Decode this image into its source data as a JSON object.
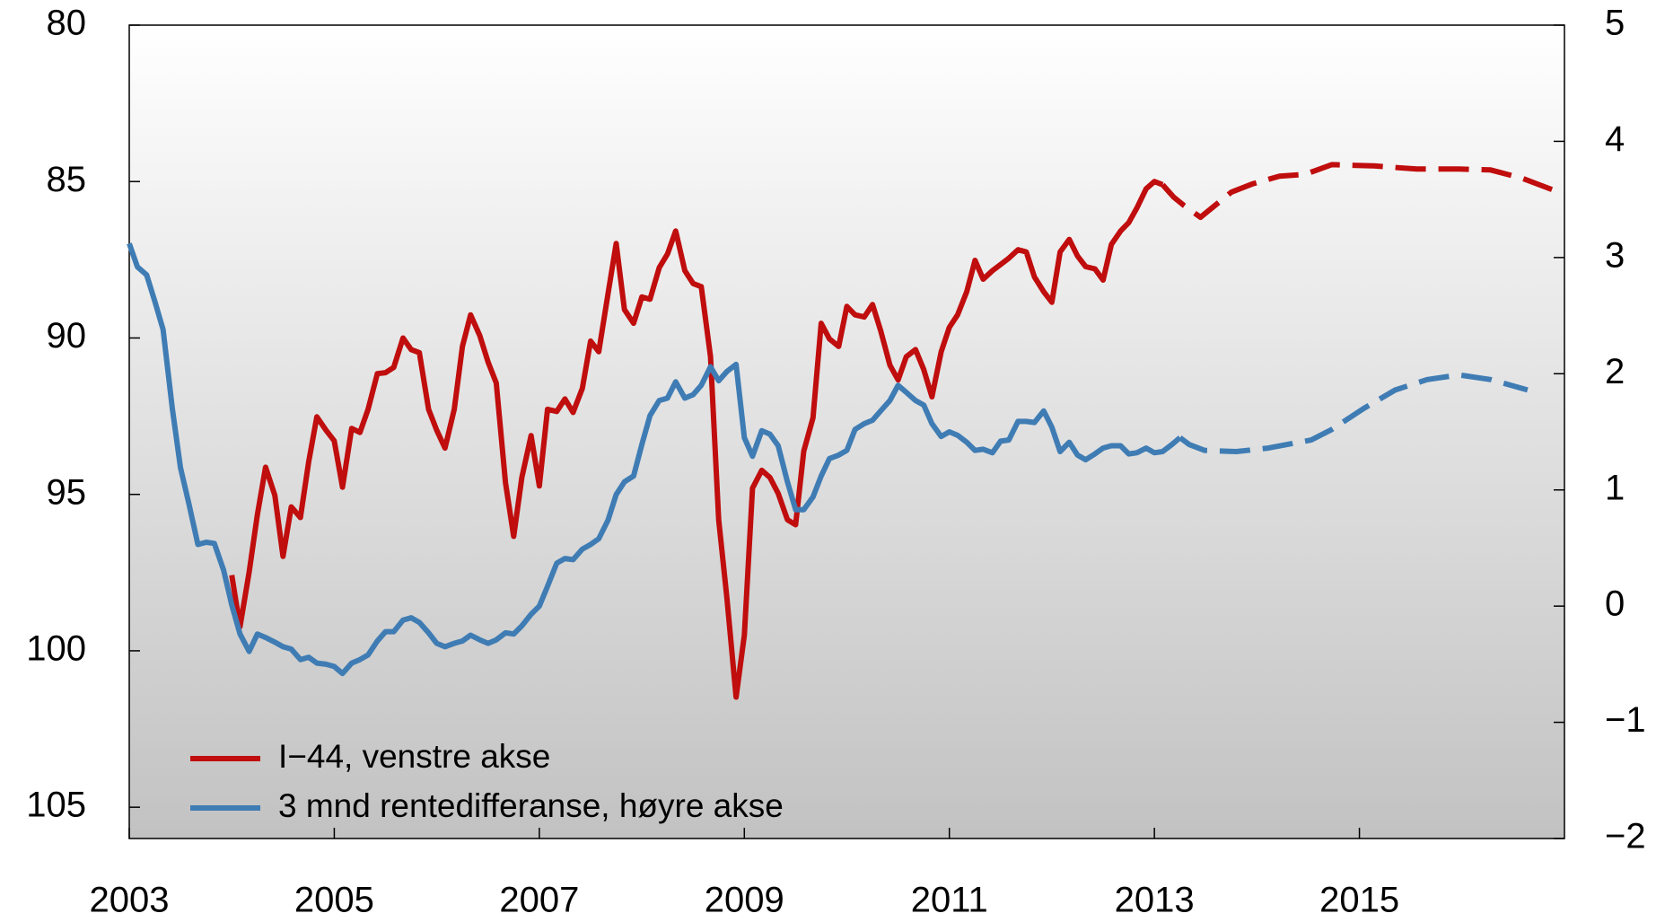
{
  "chart_data": {
    "type": "line",
    "xlim": [
      2003,
      2017
    ],
    "xticks": [
      2003,
      2005,
      2007,
      2009,
      2011,
      2013,
      2015
    ],
    "ylim": [
      80,
      106
    ],
    "y_inverted": true,
    "yticks": [
      80,
      85,
      90,
      95,
      100,
      105
    ],
    "y2lim": [
      -2,
      5
    ],
    "y2ticks": [
      5,
      4,
      3,
      2,
      1,
      0,
      {
        "value": -1,
        "label": "−1"
      },
      {
        "value": -2,
        "label": "−2"
      }
    ],
    "legend": "lower left",
    "series": [
      {
        "name": "I−44, venstre akse",
        "color": "#c00d0d",
        "axis": "y",
        "x": [
          2004,
          2004.08,
          2004.17,
          2004.25,
          2004.33,
          2004.42,
          2004.5,
          2004.58,
          2004.67,
          2004.75,
          2004.83,
          2004.92,
          2005,
          2005.08,
          2005.17,
          2005.25,
          2005.33,
          2005.42,
          2005.5,
          2005.58,
          2005.67,
          2005.75,
          2005.83,
          2005.92,
          2006,
          2006.08,
          2006.17,
          2006.25,
          2006.33,
          2006.42,
          2006.5,
          2006.58,
          2006.67,
          2006.75,
          2006.83,
          2006.92,
          2007,
          2007.08,
          2007.17,
          2007.25,
          2007.33,
          2007.42,
          2007.5,
          2007.58,
          2007.67,
          2007.75,
          2007.83,
          2007.92,
          2008,
          2008.08,
          2008.17,
          2008.25,
          2008.33,
          2008.42,
          2008.5,
          2008.58,
          2008.67,
          2008.75,
          2008.83,
          2008.92,
          2009,
          2009.08,
          2009.17,
          2009.25,
          2009.33,
          2009.42,
          2009.5,
          2009.58,
          2009.67,
          2009.75,
          2009.83,
          2009.92,
          2010,
          2010.08,
          2010.17,
          2010.25,
          2010.33,
          2010.42,
          2010.5,
          2010.58,
          2010.67,
          2010.75,
          2010.83,
          2010.92,
          2011,
          2011.08,
          2011.17,
          2011.25,
          2011.33,
          2011.42,
          2011.5,
          2011.58,
          2011.67,
          2011.75,
          2011.83,
          2011.92,
          2012,
          2012.08,
          2012.17,
          2012.25,
          2012.33,
          2012.42,
          2012.5,
          2012.58,
          2012.67,
          2012.75,
          2012.83,
          2012.92,
          2013,
          2013.08
        ],
        "values": [
          97.58,
          99.23,
          97.48,
          95.64,
          94.13,
          95.03,
          96.98,
          95.4,
          95.74,
          93.96,
          92.52,
          92.95,
          93.29,
          94.77,
          92.89,
          93.02,
          92.28,
          91.14,
          91.11,
          90.94,
          90.0,
          90.37,
          90.47,
          92.28,
          92.95,
          93.52,
          92.28,
          90.27,
          89.26,
          89.93,
          90.77,
          91.44,
          94.63,
          96.34,
          94.46,
          93.12,
          94.73,
          92.28,
          92.35,
          91.95,
          92.38,
          91.61,
          90.1,
          90.44,
          88.59,
          86.98,
          89.09,
          89.53,
          88.69,
          88.76,
          87.75,
          87.32,
          86.58,
          87.85,
          88.26,
          88.36,
          90.6,
          95.81,
          98.32,
          101.48,
          99.5,
          94.8,
          94.23,
          94.46,
          94.97,
          95.81,
          95.97,
          93.62,
          92.55,
          89.53,
          90.03,
          90.27,
          88.99,
          89.26,
          89.33,
          88.93,
          89.77,
          90.87,
          91.34,
          90.6,
          90.37,
          91.01,
          91.88,
          90.44,
          89.66,
          89.26,
          88.52,
          87.52,
          88.12,
          87.85,
          87.65,
          87.45,
          87.18,
          87.25,
          88.05,
          88.52,
          88.86,
          87.25,
          86.85,
          87.38,
          87.72,
          87.79,
          88.15,
          87.01,
          86.58,
          86.31,
          85.84,
          85.23,
          85.0,
          85.1
        ]
      },
      {
        "name": "3 mnd rentedifferanse, høyre akse",
        "color": "#3f7cb4",
        "axis": "y2",
        "x": [
          2003,
          2003.08,
          2003.17,
          2003.25,
          2003.33,
          2003.42,
          2003.5,
          2003.58,
          2003.67,
          2003.75,
          2003.83,
          2003.92,
          2004,
          2004.08,
          2004.17,
          2004.25,
          2004.33,
          2004.42,
          2004.5,
          2004.58,
          2004.67,
          2004.75,
          2004.83,
          2004.92,
          2005,
          2005.08,
          2005.17,
          2005.25,
          2005.33,
          2005.42,
          2005.5,
          2005.58,
          2005.67,
          2005.75,
          2005.83,
          2005.92,
          2006,
          2006.08,
          2006.17,
          2006.25,
          2006.33,
          2006.42,
          2006.5,
          2006.58,
          2006.67,
          2006.75,
          2006.83,
          2006.92,
          2007,
          2007.08,
          2007.17,
          2007.25,
          2007.33,
          2007.42,
          2007.5,
          2007.58,
          2007.67,
          2007.75,
          2007.83,
          2007.92,
          2008,
          2008.08,
          2008.17,
          2008.25,
          2008.33,
          2008.42,
          2008.5,
          2008.58,
          2008.67,
          2008.75,
          2008.83,
          2008.92,
          2009,
          2009.08,
          2009.17,
          2009.25,
          2009.33,
          2009.42,
          2009.5,
          2009.58,
          2009.67,
          2009.75,
          2009.83,
          2009.92,
          2010,
          2010.08,
          2010.17,
          2010.25,
          2010.33,
          2010.42,
          2010.5,
          2010.58,
          2010.67,
          2010.75,
          2010.83,
          2010.92,
          2011,
          2011.08,
          2011.17,
          2011.25,
          2011.33,
          2011.42,
          2011.5,
          2011.58,
          2011.67,
          2011.75,
          2011.83,
          2011.92,
          2012,
          2012.08,
          2012.17,
          2012.25,
          2012.33,
          2012.42,
          2012.5,
          2012.58,
          2012.67,
          2012.75,
          2012.83,
          2012.92,
          2013,
          2013.08,
          2013.17,
          2013.25
        ],
        "values": [
          3.12,
          2.92,
          2.85,
          2.62,
          2.38,
          1.7,
          1.19,
          0.89,
          0.53,
          0.55,
          0.54,
          0.31,
          0.01,
          -0.24,
          -0.39,
          -0.24,
          -0.27,
          -0.31,
          -0.35,
          -0.37,
          -0.46,
          -0.44,
          -0.49,
          -0.5,
          -0.52,
          -0.58,
          -0.49,
          -0.46,
          -0.42,
          -0.3,
          -0.22,
          -0.22,
          -0.12,
          -0.1,
          -0.14,
          -0.23,
          -0.32,
          -0.35,
          -0.32,
          -0.3,
          -0.25,
          -0.29,
          -0.32,
          -0.29,
          -0.23,
          -0.24,
          -0.17,
          -0.07,
          0.0,
          0.17,
          0.37,
          0.41,
          0.4,
          0.49,
          0.53,
          0.58,
          0.74,
          0.96,
          1.07,
          1.12,
          1.39,
          1.64,
          1.77,
          1.79,
          1.93,
          1.79,
          1.82,
          1.9,
          2.06,
          1.94,
          2.02,
          2.08,
          1.45,
          1.29,
          1.51,
          1.48,
          1.38,
          1.07,
          0.83,
          0.83,
          0.94,
          1.12,
          1.27,
          1.3,
          1.34,
          1.52,
          1.57,
          1.6,
          1.68,
          1.77,
          1.9,
          1.84,
          1.77,
          1.73,
          1.57,
          1.46,
          1.5,
          1.47,
          1.41,
          1.34,
          1.35,
          1.32,
          1.42,
          1.43,
          1.59,
          1.59,
          1.58,
          1.68,
          1.54,
          1.33,
          1.41,
          1.3,
          1.26,
          1.31,
          1.36,
          1.38,
          1.38,
          1.31,
          1.32,
          1.36,
          1.32,
          1.33,
          1.39,
          1.45
        ]
      },
      {
        "color": "#c00d0d",
        "axis": "y",
        "dash": true,
        "x": [
          2013.08,
          2013.19,
          2013.29,
          2013.45,
          2013.6,
          2013.75,
          2013.96,
          2014.22,
          2014.47,
          2014.73,
          2015.14,
          2015.56,
          2015.97,
          2016.28,
          2016.59,
          2016.97
        ],
        "values": [
          85.1,
          85.5,
          85.77,
          86.14,
          85.74,
          85.34,
          85.07,
          84.83,
          84.77,
          84.46,
          84.5,
          84.6,
          84.6,
          84.63,
          84.9,
          85.37
        ]
      },
      {
        "color": "#3f7cb4",
        "axis": "y2",
        "dash": true,
        "x": [
          2013.25,
          2013.34,
          2013.49,
          2013.8,
          2014.11,
          2014.53,
          2014.73,
          2015.04,
          2015.35,
          2015.66,
          2015.97,
          2016.28,
          2016.64
        ],
        "values": [
          1.45,
          1.39,
          1.34,
          1.33,
          1.36,
          1.43,
          1.52,
          1.7,
          1.86,
          1.95,
          1.99,
          1.95,
          1.86
        ]
      }
    ]
  }
}
